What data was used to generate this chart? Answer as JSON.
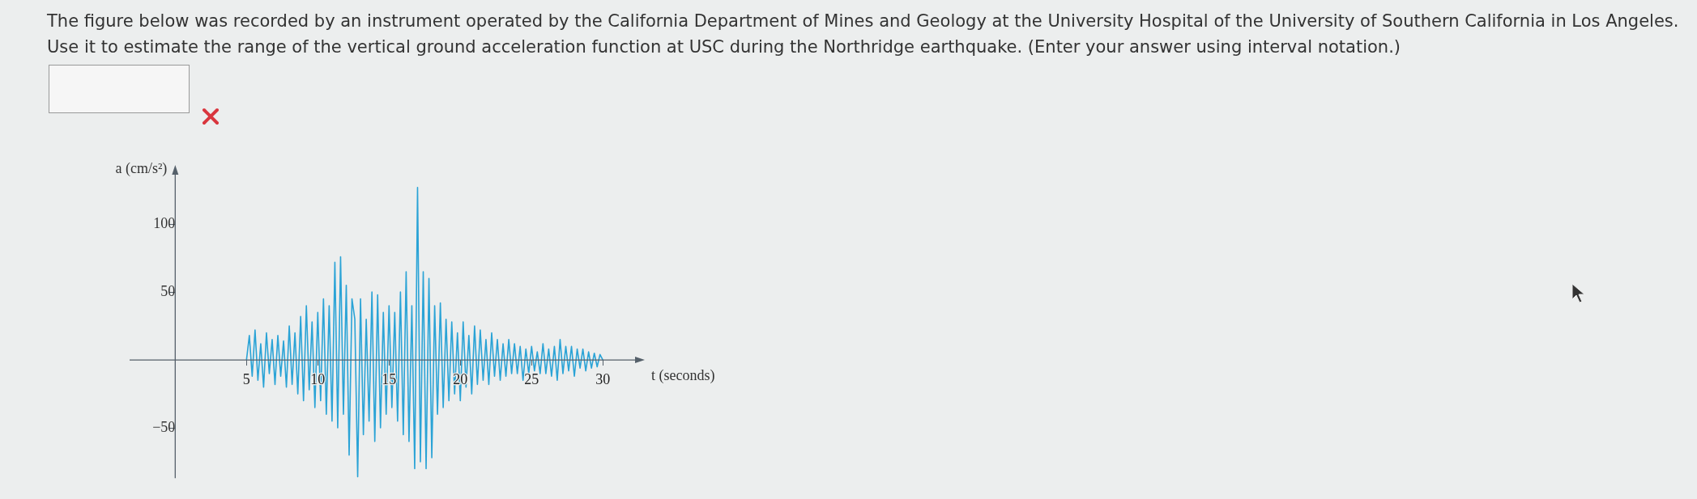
{
  "chart_data": {
    "type": "line",
    "title": "The figure below was recorded by an instrument operated by the California Department of Mines and Geology at the University Hospital of the University of Southern California in Los Angeles. Use it to estimate the range of the vertical ground acceleration function at USC during the Northridge earthquake. (Enter your answer using interval notation.)",
    "xlabel": "t (seconds)",
    "ylabel": "a (cm/s²)",
    "xlim": [
      -3.2,
      32.6
    ],
    "ylim": [
      -87,
      140
    ],
    "xticks": [
      5,
      10,
      15,
      20,
      25,
      30
    ],
    "yticks": [
      -50,
      50,
      100
    ],
    "grid": false,
    "marker": "none",
    "line_style": "solid",
    "series": [
      {
        "color": "#2aa3d6",
        "x": [
          5.0,
          5.2,
          5.4,
          5.6,
          5.8,
          6.0,
          6.2,
          6.4,
          6.6,
          6.8,
          7.0,
          7.2,
          7.4,
          7.6,
          7.8,
          8.0,
          8.2,
          8.4,
          8.6,
          8.8,
          9.0,
          9.2,
          9.4,
          9.6,
          9.8,
          10.0,
          10.2,
          10.4,
          10.6,
          10.8,
          11.0,
          11.2,
          11.4,
          11.6,
          11.8,
          12.0,
          12.2,
          12.4,
          12.6,
          12.8,
          13.0,
          13.2,
          13.4,
          13.6,
          13.8,
          14.0,
          14.2,
          14.4,
          14.6,
          14.8,
          15.0,
          15.2,
          15.4,
          15.6,
          15.8,
          16.0,
          16.2,
          16.4,
          16.6,
          16.8,
          17.0,
          17.2,
          17.4,
          17.6,
          17.8,
          18.0,
          18.2,
          18.4,
          18.6,
          18.8,
          19.0,
          19.2,
          19.4,
          19.6,
          19.8,
          20.0,
          20.2,
          20.4,
          20.6,
          20.8,
          21.0,
          21.2,
          21.4,
          21.6,
          21.8,
          22.0,
          22.2,
          22.4,
          22.6,
          22.8,
          23.0,
          23.2,
          23.4,
          23.6,
          23.8,
          24.0,
          24.2,
          24.4,
          24.6,
          24.8,
          25.0,
          25.2,
          25.4,
          25.6,
          25.8,
          26.0,
          26.2,
          26.4,
          26.6,
          26.8,
          27.0,
          27.2,
          27.4,
          27.6,
          27.8,
          28.0,
          28.2,
          28.4,
          28.6,
          28.8,
          29.0,
          29.2,
          29.4,
          29.6,
          29.8,
          30.0
        ],
        "values": [
          0,
          18,
          -12,
          22,
          -15,
          12,
          -20,
          20,
          -10,
          15,
          -18,
          18,
          -12,
          14,
          -20,
          25,
          -18,
          20,
          -25,
          32,
          -30,
          40,
          -22,
          28,
          -35,
          35,
          -30,
          45,
          -40,
          40,
          -45,
          72,
          -50,
          76,
          -40,
          55,
          -70,
          45,
          30,
          -86,
          45,
          -55,
          30,
          -45,
          50,
          -60,
          48,
          -50,
          35,
          -40,
          40,
          -35,
          35,
          -45,
          50,
          -55,
          65,
          -60,
          40,
          -80,
          127,
          -75,
          65,
          -80,
          60,
          -72,
          40,
          -40,
          42,
          -35,
          30,
          -30,
          28,
          -25,
          20,
          -30,
          28,
          -20,
          18,
          -25,
          25,
          -18,
          22,
          -15,
          15,
          -18,
          20,
          -12,
          15,
          -15,
          12,
          -12,
          15,
          -10,
          12,
          -10,
          10,
          -15,
          8,
          -10,
          10,
          -8,
          6,
          -10,
          12,
          -10,
          8,
          -12,
          10,
          -15,
          15,
          -10,
          10,
          -8,
          10,
          -12,
          8,
          -6,
          8,
          -8,
          6,
          -6,
          5,
          -5,
          4,
          0
        ]
      }
    ]
  }
}
